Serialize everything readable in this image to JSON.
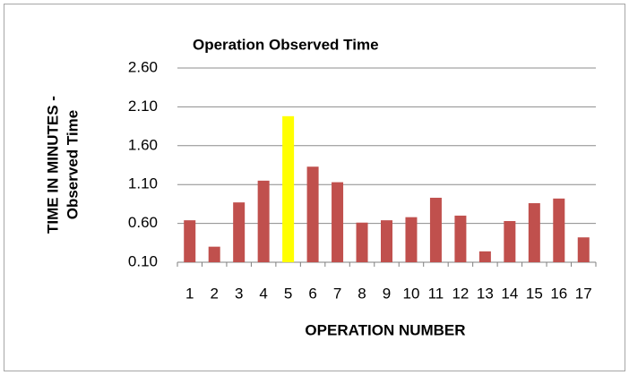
{
  "chart_data": {
    "type": "bar",
    "title": "Operation Observed Time",
    "xlabel": "OPERATION NUMBER",
    "ylabel": [
      "TIME IN MINUTES -",
      "Observed Time"
    ],
    "categories": [
      "1",
      "2",
      "3",
      "4",
      "5",
      "6",
      "7",
      "8",
      "9",
      "10",
      "11",
      "12",
      "13",
      "14",
      "15",
      "16",
      "17"
    ],
    "values": [
      0.64,
      0.3,
      0.87,
      1.15,
      1.98,
      1.33,
      1.13,
      0.61,
      0.64,
      0.68,
      0.93,
      0.7,
      0.24,
      0.63,
      0.86,
      0.92,
      0.42
    ],
    "colors": [
      "#c0504d",
      "#c0504d",
      "#c0504d",
      "#c0504d",
      "#ffff00",
      "#c0504d",
      "#c0504d",
      "#c0504d",
      "#c0504d",
      "#c0504d",
      "#c0504d",
      "#c0504d",
      "#c0504d",
      "#c0504d",
      "#c0504d",
      "#c0504d",
      "#c0504d"
    ],
    "ylim": [
      0.1,
      2.6
    ],
    "yticks": [
      {
        "value": 0.1,
        "label": "0.10"
      },
      {
        "value": 0.6,
        "label": "0.60"
      },
      {
        "value": 1.1,
        "label": "1.10"
      },
      {
        "value": 1.6,
        "label": "1.60"
      },
      {
        "value": 2.1,
        "label": "2.10"
      },
      {
        "value": 2.6,
        "label": "2.60"
      }
    ],
    "grid": true
  }
}
